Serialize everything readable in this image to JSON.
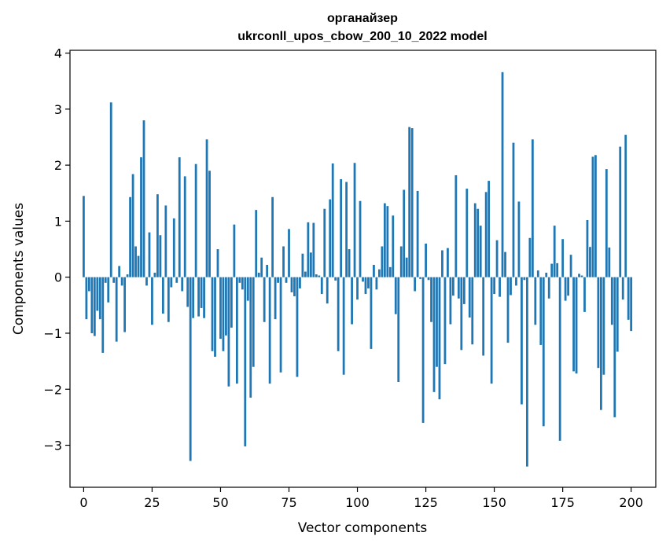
{
  "chart_data": {
    "type": "bar",
    "title_line1": "органайзер",
    "title_line2": "ukrconll_upos_cbow_200_10_2022 model",
    "xlabel": "Vector components",
    "ylabel": "Components values",
    "xlim": [
      -5,
      209
    ],
    "ylim": [
      -3.75,
      4.05
    ],
    "xticks": [
      0,
      25,
      50,
      75,
      100,
      125,
      150,
      175,
      200
    ],
    "xtick_labels": [
      "0",
      "25",
      "50",
      "75",
      "100",
      "125",
      "150",
      "175",
      "200"
    ],
    "yticks": [
      -3,
      -2,
      -1,
      0,
      1,
      2,
      3,
      4
    ],
    "ytick_labels": [
      "−3",
      "−2",
      "−1",
      "0",
      "1",
      "2",
      "3",
      "4"
    ],
    "bar_color": "#1f77b4",
    "values": [
      1.45,
      -0.75,
      -0.25,
      -1.0,
      -1.05,
      -0.6,
      -0.75,
      -1.35,
      -0.1,
      -0.45,
      3.12,
      -0.1,
      -1.15,
      0.2,
      -0.15,
      -0.98,
      0.05,
      1.43,
      1.84,
      0.55,
      0.38,
      2.14,
      2.8,
      -0.15,
      0.8,
      -0.85,
      0.08,
      1.48,
      0.75,
      -0.65,
      1.28,
      -0.8,
      -0.18,
      1.05,
      -0.1,
      2.14,
      -0.25,
      1.8,
      -0.53,
      -3.28,
      -0.73,
      2.02,
      -0.7,
      -0.55,
      -0.73,
      2.46,
      1.9,
      -1.32,
      -1.42,
      0.5,
      -1.1,
      -1.32,
      -1.04,
      -1.95,
      -0.9,
      0.94,
      -1.9,
      -0.1,
      -0.22,
      -3.02,
      -0.42,
      -2.15,
      -1.6,
      1.2,
      0.08,
      0.35,
      -0.8,
      0.22,
      -1.9,
      1.43,
      -0.75,
      -0.1,
      -1.7,
      0.55,
      -0.1,
      0.86,
      -0.27,
      -0.34,
      -1.78,
      -0.2,
      0.42,
      0.1,
      0.98,
      0.44,
      0.97,
      0.05,
      0.03,
      -0.3,
      1.22,
      -0.47,
      1.39,
      2.03,
      -0.06,
      -1.32,
      1.75,
      -1.74,
      1.7,
      0.5,
      -0.84,
      2.04,
      -0.4,
      1.36,
      -0.08,
      -0.3,
      -0.2,
      -1.28,
      0.22,
      -0.22,
      0.14,
      0.55,
      1.32,
      1.27,
      0.18,
      1.1,
      -0.66,
      -1.87,
      0.55,
      1.56,
      0.35,
      2.68,
      2.66,
      -0.25,
      1.54,
      -0.03,
      -2.6,
      0.6,
      -0.05,
      -0.8,
      -2.05,
      -1.6,
      -2.18,
      0.48,
      -1.55,
      0.52,
      -0.84,
      -0.33,
      1.82,
      -0.38,
      -1.3,
      -0.48,
      1.58,
      -0.72,
      -1.2,
      1.32,
      1.22,
      0.92,
      -1.4,
      1.52,
      1.72,
      -1.9,
      -0.3,
      0.66,
      -0.35,
      3.66,
      0.45,
      -1.17,
      -0.32,
      2.4,
      -0.15,
      1.35,
      -2.27,
      -0.05,
      -3.38,
      0.7,
      2.46,
      -0.85,
      0.12,
      -1.21,
      -2.66,
      0.08,
      -0.38,
      0.24,
      0.92,
      0.25,
      -2.92,
      0.68,
      -0.42,
      -0.33,
      0.4,
      -1.68,
      -1.72,
      0.06,
      0.03,
      -0.62,
      1.02,
      0.54,
      2.15,
      2.18,
      -1.62,
      -2.37,
      -1.74,
      1.93,
      0.53,
      -0.85,
      -2.5,
      -1.33,
      2.33,
      -0.4,
      2.54,
      -0.76,
      -0.96
    ]
  }
}
